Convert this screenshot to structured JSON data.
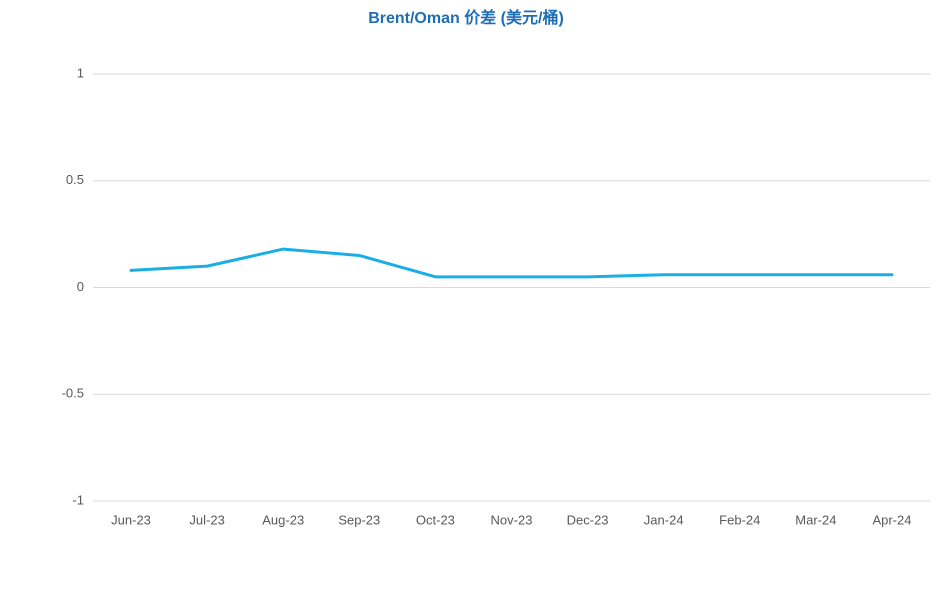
{
  "chart_data": {
    "type": "line",
    "title": "Brent/Oman 价差 (美元/桶)",
    "categories": [
      "Jun-23",
      "Jul-23",
      "Aug-23",
      "Sep-23",
      "Oct-23",
      "Nov-23",
      "Dec-23",
      "Jan-24",
      "Feb-24",
      "Mar-24",
      "Apr-24"
    ],
    "series": [
      {
        "color": "#1aaee6",
        "values": [
          0.08,
          0.1,
          0.18,
          0.15,
          0.05,
          0.05,
          0.05,
          0.06,
          0.06,
          0.06,
          0.06
        ]
      }
    ],
    "ylim": [
      -1,
      1
    ],
    "yticks": [
      -1,
      -0.5,
      0,
      0.5,
      1
    ],
    "grid": true
  }
}
